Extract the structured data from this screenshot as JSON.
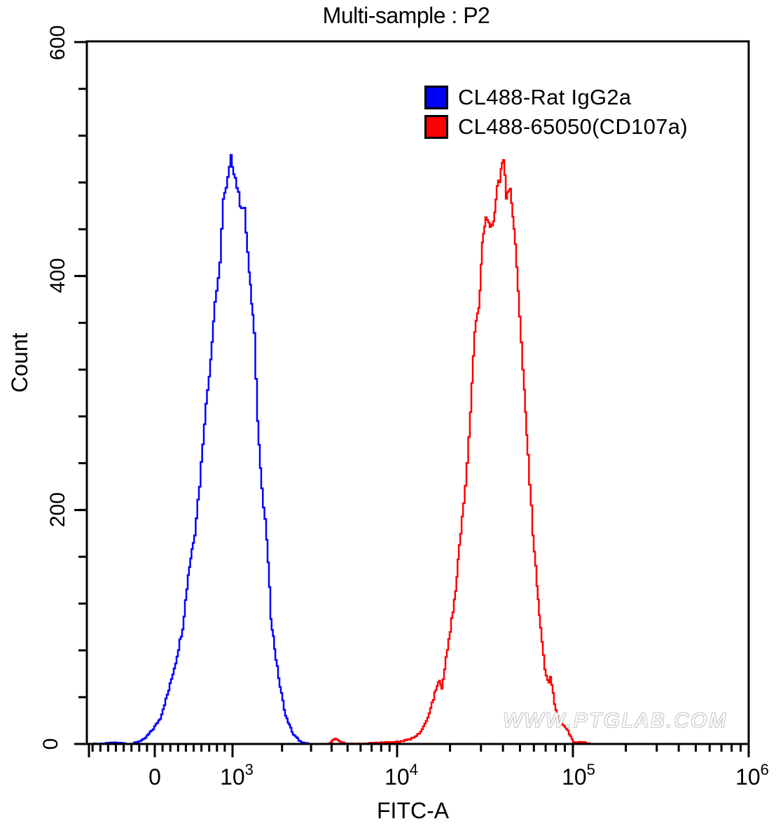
{
  "title": "Multi-sample : P2",
  "watermark": "WWW.PTGLAB.COM",
  "legend": [
    {
      "label": "CL488-Rat IgG2a",
      "color": "#0000ff"
    },
    {
      "label": "CL488-65050(CD107a)",
      "color": "#ff0000"
    }
  ],
  "axes": {
    "xlabel": "FITC-A",
    "ylabel": "Count",
    "yticks": [
      "0",
      "200",
      "400",
      "600"
    ],
    "xticks": [
      {
        "base": "0",
        "exp": ""
      },
      {
        "base": "10",
        "exp": "3"
      },
      {
        "base": "10",
        "exp": "4"
      },
      {
        "base": "10",
        "exp": "5"
      },
      {
        "base": "10",
        "exp": "6"
      }
    ]
  },
  "chart_data": {
    "type": "line",
    "title": "Multi-sample : P2",
    "xlabel": "FITC-A",
    "ylabel": "Count",
    "xscale": "biexponential",
    "xlim": [
      -1000,
      1000000
    ],
    "ylim": [
      0,
      600
    ],
    "x_major_ticks": [
      0,
      1000,
      10000,
      100000,
      1000000
    ],
    "y_major_ticks": [
      0,
      200,
      400,
      600
    ],
    "y_minor_step": 40,
    "grid": false,
    "legend_position": "top-right",
    "series": [
      {
        "name": "CL488-Rat IgG2a",
        "color": "#0000ff",
        "points": [
          [
            -800,
            0
          ],
          [
            -500,
            1
          ],
          [
            -300,
            0
          ],
          [
            -144,
            4
          ],
          [
            -27,
            13
          ],
          [
            63,
            22
          ],
          [
            171,
            46
          ],
          [
            261,
            70
          ],
          [
            351,
            100
          ],
          [
            423,
            145
          ],
          [
            505,
            181
          ],
          [
            568,
            222
          ],
          [
            631,
            276
          ],
          [
            712,
            330
          ],
          [
            766,
            378
          ],
          [
            829,
            409
          ],
          [
            874,
            468
          ],
          [
            910,
            474
          ],
          [
            973,
            501
          ],
          [
            1030,
            484
          ],
          [
            1103,
            462
          ],
          [
            1170,
            456
          ],
          [
            1253,
            402
          ],
          [
            1342,
            354
          ],
          [
            1409,
            276
          ],
          [
            1494,
            216
          ],
          [
            1600,
            176
          ],
          [
            1698,
            109
          ],
          [
            1820,
            73
          ],
          [
            1928,
            49
          ],
          [
            2085,
            24
          ],
          [
            2323,
            8
          ],
          [
            2613,
            1
          ],
          [
            3000,
            0
          ]
        ]
      },
      {
        "name": "CL488-65050(CD107a)",
        "color": "#ff0000",
        "points": [
          [
            3800,
            0
          ],
          [
            4178,
            5
          ],
          [
            4600,
            1
          ],
          [
            5500,
            0
          ],
          [
            7674,
            1
          ],
          [
            10280,
            2
          ],
          [
            11800,
            4
          ],
          [
            13520,
            10
          ],
          [
            14830,
            22
          ],
          [
            16260,
            43
          ],
          [
            17340,
            55
          ],
          [
            17830,
            46
          ],
          [
            19180,
            82
          ],
          [
            21030,
            121
          ],
          [
            22440,
            168
          ],
          [
            23710,
            205
          ],
          [
            24790,
            240
          ],
          [
            25950,
            282
          ],
          [
            27420,
            354
          ],
          [
            28970,
            372
          ],
          [
            30340,
            426
          ],
          [
            31770,
            448
          ],
          [
            33570,
            444
          ],
          [
            35150,
            444
          ],
          [
            36810,
            480
          ],
          [
            38180,
            483
          ],
          [
            39990,
            501
          ],
          [
            41490,
            468
          ],
          [
            43790,
            477
          ],
          [
            46700,
            426
          ],
          [
            49330,
            366
          ],
          [
            52590,
            300
          ],
          [
            55080,
            246
          ],
          [
            58730,
            180
          ],
          [
            62080,
            138
          ],
          [
            65000,
            97
          ],
          [
            68710,
            64
          ],
          [
            72600,
            52
          ],
          [
            73930,
            59
          ],
          [
            78000,
            34
          ],
          [
            82450,
            19
          ],
          [
            91240,
            13
          ],
          [
            100000,
            2
          ],
          [
            117000,
            1
          ],
          [
            125000,
            0
          ]
        ]
      }
    ]
  }
}
